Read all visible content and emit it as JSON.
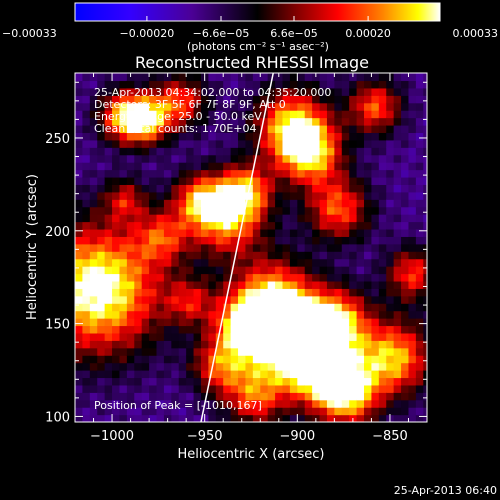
{
  "chart_data": {
    "type": "heatmap",
    "title": "Reconstructed RHESSI Image",
    "xlabel": "Heliocentric X (arcsec)",
    "ylabel": "Heliocentric Y (arcsec)",
    "xlim": [
      -1020,
      -830
    ],
    "ylim": [
      97,
      285
    ],
    "x_ticks": [
      -1000,
      -950,
      -900,
      -850
    ],
    "x_tick_labels": [
      "−1000",
      "−950",
      "−900",
      "−850"
    ],
    "y_ticks": [
      100,
      150,
      200,
      250
    ],
    "y_tick_labels": [
      "100",
      "150",
      "200",
      "250"
    ],
    "colorbar": {
      "range": [
        -0.00033,
        0.00033
      ],
      "ticks": [
        -0.00033,
        -0.0002,
        -6.6e-05,
        6.6e-05,
        0.0002,
        0.00033
      ],
      "tick_labels": [
        "−0.00033",
        "−0.00020",
        "−6.6e−05",
        "6.6e−05",
        "0.00020",
        "0.00033"
      ],
      "units": "(photons cm⁻² s⁻¹ asec⁻²)",
      "colormap": [
        "#0000ff",
        "#3300ff",
        "#4b0096",
        "#000000",
        "#7a0000",
        "#ff0000",
        "#ff8000",
        "#ffff00",
        "#ffffff"
      ]
    },
    "annotations": [
      "25-Apr-2013 04:34:02.000 to 04:35:20.000",
      "Detectors: 3F 5F 6F 7F 8F 9F, Att 0",
      "Energy Range: 25.0 - 50.0 keV",
      "Clean    Total counts: 1.70E+04",
      "Position of Peak = [-1010,167]"
    ],
    "peak_position": [
      -1010,
      167
    ],
    "limb_line": [
      [
        -952,
        97
      ],
      [
        -913,
        285
      ]
    ],
    "grid": false,
    "legend": "none"
  },
  "timestamp": "25-Apr-2013 06:40"
}
